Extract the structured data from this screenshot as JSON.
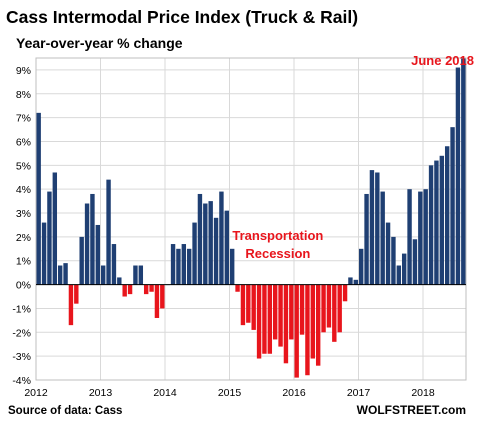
{
  "chart_data": {
    "type": "bar",
    "title": "Cass Intermodal Price Index (Truck & Rail)",
    "subtitle": "Year-over-year % change",
    "xlabel": "",
    "ylabel": "",
    "ylim": [
      -4,
      9.5
    ],
    "yticks": [
      -4,
      -3,
      -2,
      -1,
      0,
      1,
      2,
      3,
      4,
      5,
      6,
      7,
      8,
      9
    ],
    "ytick_labels": [
      "-4%",
      "-3%",
      "-2%",
      "-1%",
      "0%",
      "1%",
      "2%",
      "3%",
      "4%",
      "5%",
      "6%",
      "7%",
      "8%",
      "9%"
    ],
    "x_start": "2012-01",
    "xticks": [
      "2012",
      "2013",
      "2014",
      "2015",
      "2016",
      "2017",
      "2018"
    ],
    "grid": true,
    "positive_color": "#1f3f73",
    "negative_color": "#e8151c",
    "annotation_color": "#e8151c",
    "annotations": [
      {
        "text": "June 2018",
        "at": "2018-06"
      },
      {
        "text": "Transportation",
        "at": "2015-10"
      },
      {
        "text": "Recession",
        "at": "2015-10"
      }
    ],
    "values": [
      7.2,
      2.6,
      3.9,
      4.7,
      0.8,
      0.9,
      -1.7,
      -0.8,
      2.0,
      3.4,
      3.8,
      2.5,
      0.8,
      4.4,
      1.7,
      0.3,
      -0.5,
      -0.4,
      0.8,
      0.8,
      -0.4,
      -0.3,
      -1.4,
      -1.0,
      0.0,
      1.7,
      1.5,
      1.7,
      1.5,
      2.6,
      3.8,
      3.4,
      3.5,
      2.8,
      3.9,
      3.1,
      1.5,
      -0.3,
      -1.7,
      -1.6,
      -1.9,
      -3.1,
      -2.9,
      -2.9,
      -2.3,
      -2.6,
      -3.3,
      -2.3,
      -3.9,
      -2.1,
      -3.8,
      -3.1,
      -3.4,
      -2.0,
      -1.8,
      -2.4,
      -2.0,
      -0.7,
      0.3,
      0.2,
      1.5,
      3.8,
      4.8,
      4.7,
      3.9,
      2.6,
      2.0,
      0.8,
      1.3,
      4.0,
      1.9,
      3.9,
      4.0,
      5.0,
      5.2,
      5.4,
      5.8,
      6.6,
      9.1,
      9.5
    ]
  },
  "footer": {
    "source": "Source of data: Cass",
    "brand": "WOLFSTREET.com"
  }
}
